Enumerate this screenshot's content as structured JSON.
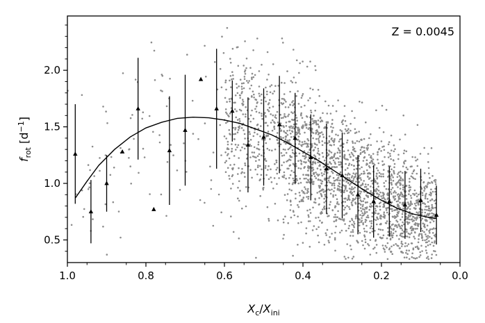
{
  "chart_data": {
    "type": "scatter",
    "title": "",
    "xlabel": {
      "main": "X",
      "main_sub": "c",
      "sep": "/",
      "den": "X",
      "den_sub": "ini"
    },
    "ylabel": {
      "main": "f",
      "main_sub": "rot",
      "unit_open": " [d",
      "unit_sup": "−1",
      "unit_close": "]"
    },
    "annotation": "Z = 0.0045",
    "xlim": [
      1.0,
      0.0
    ],
    "ylim": [
      0.3,
      2.48
    ],
    "x_reversed": true,
    "x_ticks": [
      1.0,
      0.8,
      0.6,
      0.4,
      0.2,
      0.0
    ],
    "x_tick_labels": [
      "1.0",
      "0.8",
      "0.6",
      "0.4",
      "0.2",
      "0.0"
    ],
    "y_ticks": [
      0.5,
      1.0,
      1.5,
      2.0
    ],
    "y_tick_labels": [
      "0.5",
      "1.0",
      "1.5",
      "2.0"
    ],
    "grid": false,
    "colors": {
      "scatter": "#8c8c8c",
      "binned": "#000000",
      "fit": "#000000"
    },
    "scatter_description": "gray dots, sparse at Xc/Xini 1.0-0.6, dense at 0.6-0.06; centre follows fit curve; spread ~0.3-2.4 d-1",
    "binned": [
      {
        "x": 0.98,
        "y": 1.26,
        "yerr_low": 0.44,
        "yerr_high": 0.44
      },
      {
        "x": 0.94,
        "y": 0.75,
        "yerr_low": 0.28,
        "yerr_high": 0.28
      },
      {
        "x": 0.9,
        "y": 1.0,
        "yerr_low": 0.25,
        "yerr_high": 0.25
      },
      {
        "x": 0.86,
        "y": 1.28,
        "yerr_low": 0.0,
        "yerr_high": 0.0
      },
      {
        "x": 0.82,
        "y": 1.66,
        "yerr_low": 0.45,
        "yerr_high": 0.45
      },
      {
        "x": 0.78,
        "y": 0.77,
        "yerr_low": 0.0,
        "yerr_high": 0.0
      },
      {
        "x": 0.74,
        "y": 1.29,
        "yerr_low": 0.48,
        "yerr_high": 0.48
      },
      {
        "x": 0.7,
        "y": 1.47,
        "yerr_low": 0.49,
        "yerr_high": 0.49
      },
      {
        "x": 0.66,
        "y": 1.92,
        "yerr_low": 0.0,
        "yerr_high": 0.0
      },
      {
        "x": 0.62,
        "y": 1.66,
        "yerr_low": 0.53,
        "yerr_high": 0.53
      },
      {
        "x": 0.58,
        "y": 1.64,
        "yerr_low": 0.27,
        "yerr_high": 0.27
      },
      {
        "x": 0.54,
        "y": 1.34,
        "yerr_low": 0.42,
        "yerr_high": 0.42
      },
      {
        "x": 0.5,
        "y": 1.41,
        "yerr_low": 0.43,
        "yerr_high": 0.43
      },
      {
        "x": 0.46,
        "y": 1.52,
        "yerr_low": 0.43,
        "yerr_high": 0.43
      },
      {
        "x": 0.42,
        "y": 1.4,
        "yerr_low": 0.4,
        "yerr_high": 0.4
      },
      {
        "x": 0.38,
        "y": 1.23,
        "yerr_low": 0.38,
        "yerr_high": 0.38
      },
      {
        "x": 0.34,
        "y": 1.13,
        "yerr_low": 0.4,
        "yerr_high": 0.4
      },
      {
        "x": 0.3,
        "y": 1.07,
        "yerr_low": 0.38,
        "yerr_high": 0.38
      },
      {
        "x": 0.26,
        "y": 0.9,
        "yerr_low": 0.35,
        "yerr_high": 0.35
      },
      {
        "x": 0.22,
        "y": 0.84,
        "yerr_low": 0.32,
        "yerr_high": 0.32
      },
      {
        "x": 0.18,
        "y": 0.84,
        "yerr_low": 0.31,
        "yerr_high": 0.31
      },
      {
        "x": 0.14,
        "y": 0.81,
        "yerr_low": 0.3,
        "yerr_high": 0.3
      },
      {
        "x": 0.1,
        "y": 0.85,
        "yerr_low": 0.28,
        "yerr_high": 0.28
      },
      {
        "x": 0.06,
        "y": 0.72,
        "yerr_low": 0.26,
        "yerr_high": 0.26
      }
    ],
    "fit_curve": [
      [
        0.98,
        0.87
      ],
      [
        0.95,
        1.02
      ],
      [
        0.92,
        1.16
      ],
      [
        0.88,
        1.3
      ],
      [
        0.84,
        1.41
      ],
      [
        0.8,
        1.49
      ],
      [
        0.76,
        1.54
      ],
      [
        0.72,
        1.575
      ],
      [
        0.68,
        1.585
      ],
      [
        0.64,
        1.58
      ],
      [
        0.6,
        1.56
      ],
      [
        0.56,
        1.53
      ],
      [
        0.52,
        1.48
      ],
      [
        0.48,
        1.43
      ],
      [
        0.44,
        1.36
      ],
      [
        0.4,
        1.28
      ],
      [
        0.36,
        1.2
      ],
      [
        0.32,
        1.11
      ],
      [
        0.28,
        1.02
      ],
      [
        0.24,
        0.93
      ],
      [
        0.2,
        0.85
      ],
      [
        0.16,
        0.78
      ],
      [
        0.12,
        0.73
      ],
      [
        0.08,
        0.7
      ],
      [
        0.06,
        0.69
      ]
    ]
  }
}
